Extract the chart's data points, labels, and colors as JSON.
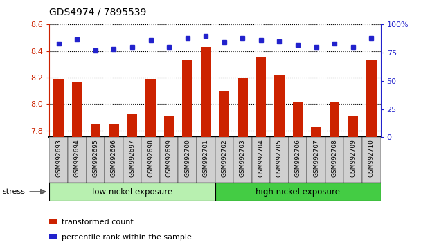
{
  "title": "GDS4974 / 7895539",
  "samples": [
    "GSM992693",
    "GSM992694",
    "GSM992695",
    "GSM992696",
    "GSM992697",
    "GSM992698",
    "GSM992699",
    "GSM992700",
    "GSM992701",
    "GSM992702",
    "GSM992703",
    "GSM992704",
    "GSM992705",
    "GSM992706",
    "GSM992707",
    "GSM992708",
    "GSM992709",
    "GSM992710"
  ],
  "bar_values": [
    8.19,
    8.17,
    7.85,
    7.85,
    7.93,
    8.19,
    7.91,
    8.33,
    8.43,
    8.1,
    8.2,
    8.35,
    8.22,
    8.01,
    7.83,
    8.01,
    7.91,
    8.33
  ],
  "dot_values": [
    83,
    87,
    77,
    78,
    80,
    86,
    80,
    88,
    90,
    84,
    88,
    86,
    85,
    82,
    80,
    83,
    80,
    88
  ],
  "bar_color": "#cc2200",
  "dot_color": "#2222cc",
  "ylim_left": [
    7.75,
    8.6
  ],
  "ylim_right": [
    0,
    100
  ],
  "yticks_left": [
    7.8,
    8.0,
    8.2,
    8.4,
    8.6
  ],
  "yticks_right": [
    0,
    25,
    50,
    75,
    100
  ],
  "group1_label": "low nickel exposure",
  "group2_label": "high nickel exposure",
  "group1_count": 9,
  "stress_label": "stress",
  "legend_bar": "transformed count",
  "legend_dot": "percentile rank within the sample",
  "bar_width": 0.55,
  "group1_color": "#b8f0b0",
  "group2_color": "#44cc44",
  "tick_label_color_left": "#cc2200",
  "tick_label_color_right": "#2222cc",
  "xtick_bg_color": "#d0d0d0",
  "plot_bg_color": "#ffffff"
}
